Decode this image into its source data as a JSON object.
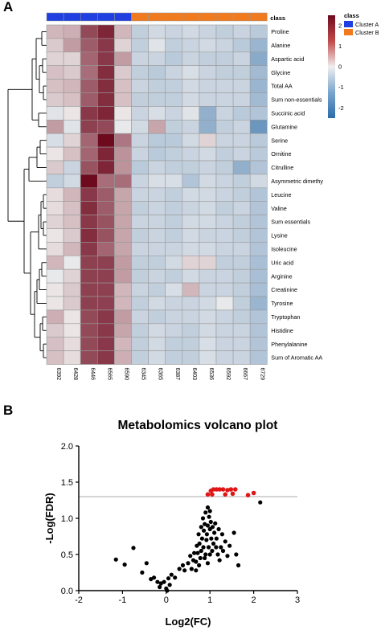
{
  "panels": {
    "a": "A",
    "b": "B"
  },
  "chart_data": [
    {
      "type": "heatmap",
      "annotation_label": "class",
      "columns": [
        "6392",
        "6428",
        "6446",
        "6565",
        "6590",
        "6345",
        "6365",
        "6387",
        "6403",
        "6536",
        "6592",
        "6667",
        "6729"
      ],
      "column_groups": [
        "Cluster A",
        "Cluster A",
        "Cluster A",
        "Cluster A",
        "Cluster A",
        "Cluster B",
        "Cluster B",
        "Cluster B",
        "Cluster B",
        "Cluster B",
        "Cluster B",
        "Cluster B",
        "Cluster B"
      ],
      "rows": [
        "Proline",
        "Alanine",
        "Aspartic acid",
        "Glycine",
        "Total AA",
        "Sum non-essentials",
        "Succinic acid",
        "Glutamine",
        "Serine",
        "Ornitine",
        "Citrulline",
        "Asymmetric dimethy",
        "Leucine",
        "Valine",
        "Sum essentials",
        "Lysine",
        "Isoleucine",
        "Uric acid",
        "Arginine",
        "Creatinine",
        "Tyrosine",
        "Tryptophan",
        "Histidine",
        "Phenylalanine",
        "Sum of Aromatic AA"
      ],
      "values": [
        [
          0.6,
          0.7,
          1.8,
          2.2,
          0.6,
          -0.6,
          -0.4,
          -0.5,
          -0.4,
          -0.5,
          -0.6,
          -0.5,
          -0.7
        ],
        [
          0.4,
          0.9,
          1.6,
          2.0,
          0.3,
          -0.6,
          -0.2,
          -0.6,
          -0.5,
          -0.4,
          -0.5,
          -0.7,
          -1.1
        ],
        [
          0.3,
          0.3,
          1.5,
          2.0,
          0.9,
          -0.5,
          -0.5,
          -0.7,
          -0.5,
          -0.6,
          -0.6,
          -0.5,
          -1.3
        ],
        [
          0.5,
          0.4,
          1.4,
          2.1,
          0.4,
          -0.6,
          -0.7,
          -0.5,
          -0.3,
          -0.5,
          -0.6,
          -0.6,
          -1.0
        ],
        [
          0.5,
          0.6,
          1.6,
          2.1,
          0.5,
          -0.5,
          -0.6,
          -0.6,
          -0.4,
          -0.5,
          -0.5,
          -0.5,
          -1.1
        ],
        [
          0.4,
          0.5,
          1.6,
          2.1,
          0.5,
          -0.6,
          -0.6,
          -0.6,
          -0.4,
          -0.5,
          -0.5,
          -0.5,
          -1.0
        ],
        [
          -0.2,
          0.1,
          2.0,
          2.2,
          0.1,
          -0.5,
          -0.3,
          -0.5,
          -0.2,
          -1.2,
          -0.5,
          -0.7,
          -0.8
        ],
        [
          0.9,
          -0.2,
          1.9,
          1.8,
          -0.1,
          -0.4,
          0.8,
          -0.6,
          -0.5,
          -1.2,
          -0.6,
          -0.5,
          -1.7
        ],
        [
          -0.3,
          0.3,
          1.5,
          2.6,
          1.3,
          -0.5,
          -0.7,
          -0.7,
          -0.4,
          0.3,
          -0.5,
          -0.5,
          -0.7
        ],
        [
          0.1,
          0.5,
          1.5,
          2.2,
          1.0,
          -0.5,
          -0.7,
          -0.6,
          -0.5,
          -0.4,
          -0.6,
          -0.5,
          -0.7
        ],
        [
          0.4,
          -0.5,
          1.7,
          2.2,
          1.0,
          -0.7,
          -0.5,
          -0.6,
          -0.6,
          -0.5,
          -0.6,
          -1.2,
          -0.8
        ],
        [
          -0.6,
          -0.4,
          2.6,
          1.4,
          1.4,
          -0.5,
          -0.3,
          -0.3,
          -0.8,
          -0.4,
          -0.5,
          -0.6,
          -0.4
        ],
        [
          0.2,
          0.6,
          2.0,
          1.6,
          0.8,
          -0.5,
          -0.5,
          -0.6,
          -0.4,
          -0.4,
          -0.5,
          -0.6,
          -0.8
        ],
        [
          0.2,
          0.5,
          2.1,
          1.6,
          0.8,
          -0.6,
          -0.5,
          -0.6,
          -0.5,
          -0.4,
          -0.6,
          -0.5,
          -0.8
        ],
        [
          0.3,
          0.5,
          2.0,
          1.7,
          0.8,
          -0.5,
          -0.5,
          -0.6,
          -0.4,
          -0.4,
          -0.5,
          -0.6,
          -0.8
        ],
        [
          0.1,
          0.4,
          2.1,
          1.7,
          0.8,
          -0.6,
          -0.5,
          -0.6,
          -0.4,
          -0.5,
          -0.5,
          -0.6,
          -0.8
        ],
        [
          0.2,
          0.6,
          2.0,
          1.5,
          0.8,
          -0.5,
          -0.5,
          -0.5,
          -0.4,
          -0.4,
          -0.5,
          -0.5,
          -0.8
        ],
        [
          0.6,
          -0.1,
          1.9,
          1.9,
          0.9,
          -0.6,
          -0.6,
          -0.4,
          0.3,
          0.3,
          -0.6,
          -0.6,
          -0.9
        ],
        [
          -0.1,
          0.3,
          1.9,
          1.9,
          0.9,
          -0.6,
          -0.5,
          -0.6,
          -0.4,
          -0.5,
          -0.5,
          -0.6,
          -0.9
        ],
        [
          0.1,
          0.4,
          1.9,
          1.9,
          0.6,
          -0.5,
          -0.6,
          -0.3,
          0.6,
          -0.5,
          -0.5,
          -0.6,
          -0.9
        ],
        [
          0.1,
          0.4,
          1.9,
          1.9,
          0.6,
          -0.6,
          -0.4,
          -0.5,
          -0.5,
          -0.4,
          -0.1,
          -0.6,
          -1.1
        ],
        [
          0.7,
          0.1,
          1.8,
          2.0,
          0.9,
          -0.5,
          -0.6,
          -0.5,
          -0.5,
          -0.4,
          -0.5,
          -0.6,
          -0.8
        ],
        [
          0.4,
          0.1,
          1.8,
          2.0,
          0.8,
          -0.6,
          -0.4,
          -0.5,
          -0.6,
          -0.4,
          -0.5,
          -0.5,
          -0.8
        ],
        [
          0.5,
          0.2,
          1.8,
          2.0,
          0.6,
          -0.6,
          -0.4,
          -0.6,
          -0.6,
          -0.3,
          -0.5,
          -0.5,
          -0.8
        ],
        [
          0.5,
          0.2,
          1.8,
          2.0,
          0.7,
          -0.6,
          -0.4,
          -0.6,
          -0.6,
          -0.3,
          -0.5,
          -0.5,
          -0.8
        ]
      ],
      "color_scale": {
        "min": -2.5,
        "max": 2.5,
        "ticks": [
          2,
          1,
          0,
          -1,
          -2
        ],
        "low": "#2c6ca8",
        "mid": "#f0eeee",
        "high": "#6e0a1e"
      },
      "legend": {
        "title": "class",
        "entries": [
          {
            "name": "Cluster A",
            "color": "#1f3fe0"
          },
          {
            "name": "Cluster B",
            "color": "#f07b1e"
          }
        ]
      }
    },
    {
      "type": "scatter",
      "title": "Metabolomics volcano plot",
      "xlabel": "Log2(FC)",
      "ylabel": "-Log(FDR)",
      "xlim": [
        -2,
        3
      ],
      "ylim": [
        0,
        2.0
      ],
      "xticks": [
        "-2",
        "-1",
        "0",
        "1",
        "2",
        "3"
      ],
      "yticks": [
        "0.0",
        "0.5",
        "1.0",
        "1.5",
        "2.0"
      ],
      "threshold": 1.3,
      "threshold_color": "#bbbbbb",
      "colors": {
        "significant": "#e01616",
        "other": "#000000"
      },
      "significant": [
        [
          0.95,
          1.33
        ],
        [
          1.02,
          1.38
        ],
        [
          1.08,
          1.4
        ],
        [
          1.15,
          1.4
        ],
        [
          1.22,
          1.4
        ],
        [
          1.3,
          1.4
        ],
        [
          1.4,
          1.39
        ],
        [
          1.48,
          1.4
        ],
        [
          1.58,
          1.4
        ],
        [
          1.05,
          1.33
        ],
        [
          1.35,
          1.33
        ],
        [
          1.52,
          1.34
        ],
        [
          1.87,
          1.32
        ],
        [
          2.0,
          1.35
        ]
      ],
      "other": [
        [
          -1.15,
          0.43
        ],
        [
          -0.75,
          0.59
        ],
        [
          -0.95,
          0.36
        ],
        [
          -0.55,
          0.25
        ],
        [
          -0.45,
          0.38
        ],
        [
          -0.35,
          0.16
        ],
        [
          -0.28,
          0.18
        ],
        [
          -0.2,
          0.12
        ],
        [
          -0.12,
          0.1
        ],
        [
          -0.05,
          0.12
        ],
        [
          -0.15,
          0.05
        ],
        [
          0.0,
          0.03
        ],
        [
          0.02,
          0.0
        ],
        [
          0.08,
          0.08
        ],
        [
          0.05,
          0.17
        ],
        [
          0.12,
          0.22
        ],
        [
          0.2,
          0.18
        ],
        [
          0.3,
          0.3
        ],
        [
          0.38,
          0.35
        ],
        [
          0.42,
          0.28
        ],
        [
          0.5,
          0.38
        ],
        [
          0.55,
          0.48
        ],
        [
          0.58,
          0.3
        ],
        [
          0.62,
          0.42
        ],
        [
          0.64,
          0.52
        ],
        [
          0.68,
          0.4
        ],
        [
          0.7,
          0.62
        ],
        [
          0.72,
          0.52
        ],
        [
          0.74,
          0.78
        ],
        [
          0.76,
          0.65
        ],
        [
          0.78,
          0.45
        ],
        [
          0.8,
          0.55
        ],
        [
          0.8,
          0.88
        ],
        [
          0.82,
          0.72
        ],
        [
          0.84,
          1.0
        ],
        [
          0.85,
          0.6
        ],
        [
          0.86,
          0.83
        ],
        [
          0.88,
          0.92
        ],
        [
          0.9,
          1.08
        ],
        [
          0.9,
          0.5
        ],
        [
          0.92,
          0.7
        ],
        [
          0.93,
          0.78
        ],
        [
          0.95,
          1.15
        ],
        [
          0.95,
          0.9
        ],
        [
          0.97,
          0.6
        ],
        [
          0.98,
          1.02
        ],
        [
          1.0,
          0.85
        ],
        [
          1.0,
          1.1
        ],
        [
          1.02,
          0.95
        ],
        [
          1.03,
          0.72
        ],
        [
          1.05,
          0.55
        ],
        [
          1.06,
          0.88
        ],
        [
          1.08,
          0.65
        ],
        [
          1.1,
          0.8
        ],
        [
          1.12,
          0.93
        ],
        [
          1.14,
          0.6
        ],
        [
          1.15,
          0.72
        ],
        [
          1.18,
          0.5
        ],
        [
          1.2,
          0.85
        ],
        [
          1.22,
          0.42
        ],
        [
          1.25,
          0.6
        ],
        [
          1.28,
          0.78
        ],
        [
          1.3,
          0.55
        ],
        [
          1.35,
          0.68
        ],
        [
          1.4,
          0.48
        ],
        [
          1.45,
          0.62
        ],
        [
          1.55,
          0.8
        ],
        [
          1.6,
          0.5
        ],
        [
          1.65,
          0.35
        ],
        [
          2.15,
          1.22
        ],
        [
          0.88,
          0.45
        ],
        [
          0.75,
          0.35
        ],
        [
          0.68,
          0.28
        ],
        [
          0.95,
          0.38
        ],
        [
          1.0,
          0.5
        ]
      ]
    }
  ]
}
